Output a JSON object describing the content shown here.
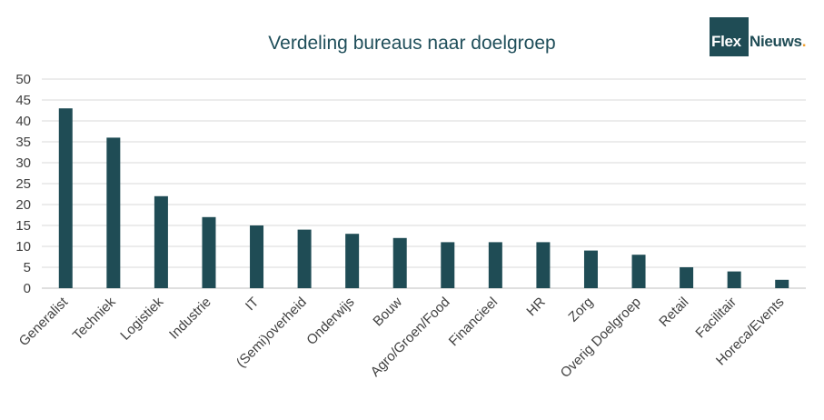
{
  "chart_data": {
    "type": "bar",
    "title": "Verdeling bureaus naar doelgroep",
    "xlabel": "",
    "ylabel": "",
    "ylim": [
      0,
      50
    ],
    "yticks": [
      0,
      5,
      10,
      15,
      20,
      25,
      30,
      35,
      40,
      45,
      50
    ],
    "grid": true,
    "legend": "none",
    "bar_color": "#1f4c55",
    "categories": [
      "Generalist",
      "Techniek",
      "Logistiek",
      "Industrie",
      "IT",
      "(Semi)overheid",
      "Onderwijs",
      "Bouw",
      "Agro/Groen/Food",
      "Financieel",
      "HR",
      "Zorg",
      "Overig Doelgroep",
      "Retail",
      "Facilitair",
      "Horeca/Events"
    ],
    "values": [
      43,
      36,
      22,
      17,
      15,
      14,
      13,
      12,
      11,
      11,
      11,
      9,
      8,
      5,
      4,
      2
    ]
  },
  "logo": {
    "box_text": "Flex",
    "rest_text": "Nieuws",
    "dot_text": "."
  }
}
